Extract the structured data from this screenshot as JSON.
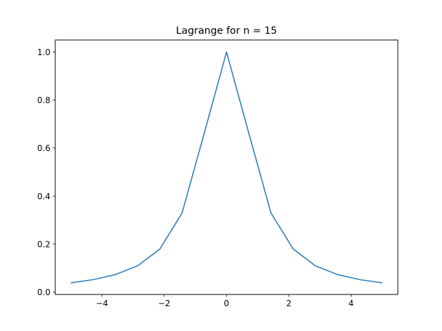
{
  "chart_data": {
    "type": "line",
    "title": "Lagrange for n = 15",
    "xlabel": "",
    "ylabel": "",
    "xlim": [
      -5.5,
      5.5
    ],
    "ylim": [
      -0.01,
      1.05
    ],
    "xticks": [
      -4,
      -2,
      0,
      2,
      4
    ],
    "xtick_labels": [
      "−4",
      "−2",
      "0",
      "2",
      "4"
    ],
    "yticks": [
      0.0,
      0.2,
      0.4,
      0.6,
      0.8,
      1.0
    ],
    "ytick_labels": [
      "0.0",
      "0.2",
      "0.4",
      "0.6",
      "0.8",
      "1.0"
    ],
    "grid": false,
    "series": [
      {
        "color": "#1f77b4",
        "x": [
          -5,
          -4.2857,
          -3.5714,
          -2.8571,
          -2.1429,
          -1.4286,
          -0.7143,
          0,
          0.7143,
          1.4286,
          2.1429,
          2.8571,
          3.5714,
          4.2857,
          5
        ],
        "y": [
          0.0385,
          0.0516,
          0.0727,
          0.1091,
          0.1789,
          0.3289,
          0.6622,
          1.0,
          0.6622,
          0.3289,
          0.1789,
          0.1091,
          0.0727,
          0.0516,
          0.0385
        ]
      }
    ]
  }
}
